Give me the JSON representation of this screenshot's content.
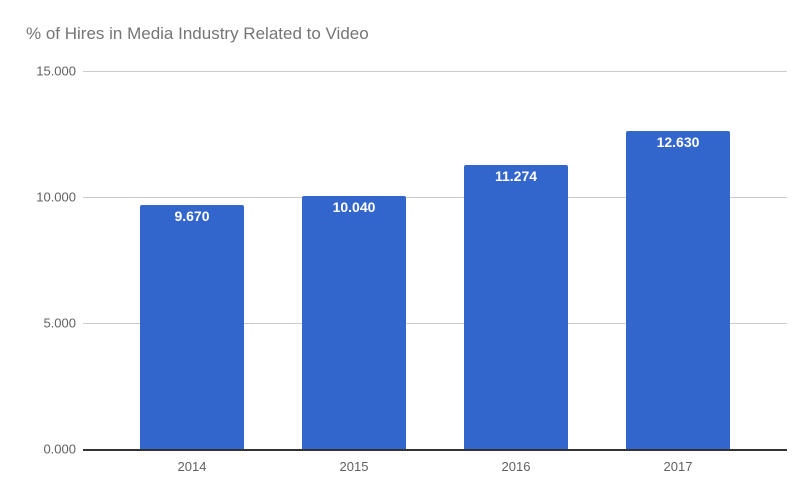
{
  "chart_data": {
    "type": "bar",
    "title": "% of Hires in Media Industry Related to Video",
    "xlabel": "",
    "ylabel": "",
    "categories": [
      "2014",
      "2015",
      "2016",
      "2017"
    ],
    "values": [
      9.67,
      10.04,
      11.274,
      12.63
    ],
    "value_labels": [
      "9.670",
      "10.040",
      "11.274",
      "12.630"
    ],
    "ylim": [
      0,
      15
    ],
    "yticks": [
      "0.000",
      "5.000",
      "10.000",
      "15.000"
    ],
    "grid": true,
    "legend": "none",
    "bar_color": "#3366cc"
  }
}
